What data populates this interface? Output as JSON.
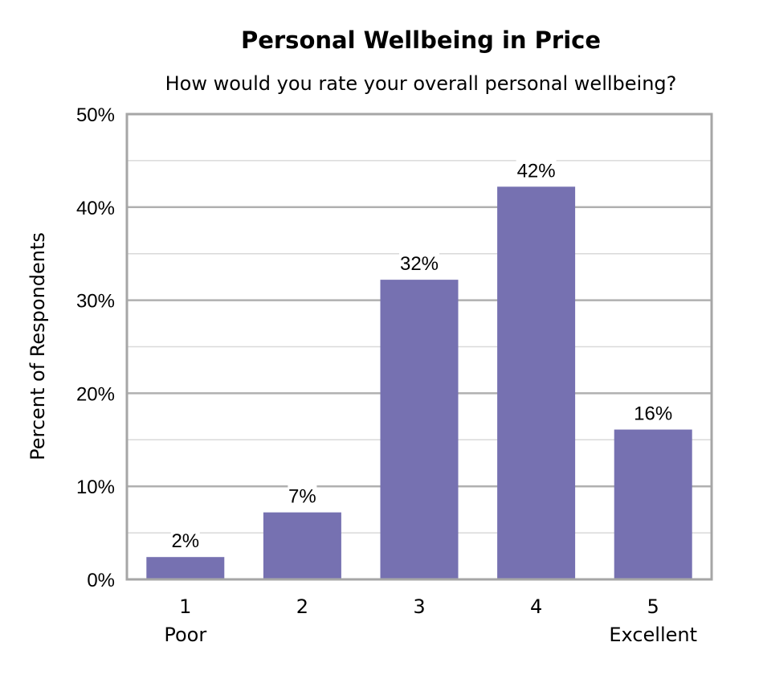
{
  "chart_data": {
    "type": "bar",
    "title": "Personal Wellbeing in Price",
    "subtitle": "How would you rate your overall personal wellbeing?",
    "xlabel": "",
    "ylabel": "Percent of Respondents",
    "categories": [
      "1",
      "2",
      "3",
      "4",
      "5"
    ],
    "category_sublabels": [
      "Poor",
      "",
      "",
      "",
      "Excellent"
    ],
    "values": [
      2.4,
      7.2,
      32.2,
      42.2,
      16.1
    ],
    "data_labels": [
      "2%",
      "7%",
      "32%",
      "42%",
      "16%"
    ],
    "ylim": [
      0,
      50
    ],
    "yticks": [
      "0%",
      "10%",
      "20%",
      "30%",
      "40%",
      "50%"
    ],
    "grid": true,
    "bar_color": "#7671B1"
  }
}
